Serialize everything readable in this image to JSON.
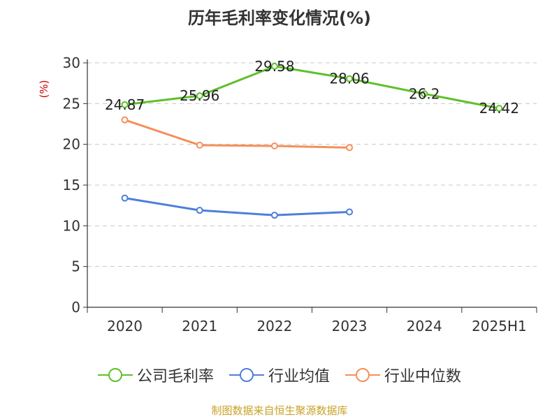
{
  "chart_data": {
    "type": "line",
    "title": "历年毛利率变化情况(%)",
    "ylabel": "(%)",
    "xlabel": "",
    "categories": [
      "2020",
      "2021",
      "2022",
      "2023",
      "2024",
      "2025H1"
    ],
    "ylim": [
      0,
      30
    ],
    "yticks": [
      0,
      5,
      10,
      15,
      20,
      25,
      30
    ],
    "grid": true,
    "legend_position": "bottom",
    "series": [
      {
        "name": "公司毛利率",
        "color": "#5ec02a",
        "show_labels": true,
        "values": [
          24.87,
          25.96,
          29.58,
          28.06,
          26.2,
          24.42
        ],
        "labels": [
          "24.87",
          "25.96",
          "29.58",
          "28.06",
          "26.2",
          "24.42"
        ]
      },
      {
        "name": "行业均值",
        "color": "#4d7fdc",
        "show_labels": false,
        "values": [
          13.4,
          11.9,
          11.3,
          11.7,
          null,
          null
        ]
      },
      {
        "name": "行业中位数",
        "color": "#f58f5a",
        "show_labels": false,
        "values": [
          23.0,
          19.9,
          19.8,
          19.6,
          null,
          null
        ]
      }
    ]
  },
  "footer": {
    "source": "制图数据来自恒生聚源数据库"
  }
}
